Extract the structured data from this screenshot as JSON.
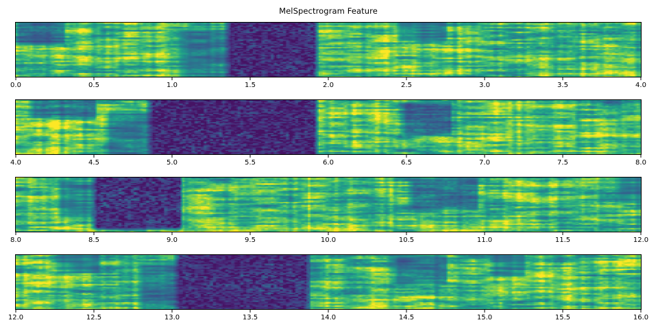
{
  "chart_data": {
    "type": "heatmap",
    "title": "MelSpectrogram Feature",
    "xlabel": "",
    "ylabel": "",
    "legend": "none",
    "grid": false,
    "colormap": "viridis",
    "colormap_stops": [
      "#440154",
      "#482878",
      "#3e4a89",
      "#31688e",
      "#26828e",
      "#1f9e89",
      "#35b779",
      "#6dcd59",
      "#b4de2c",
      "#fde725"
    ],
    "panels": [
      {
        "x_range": [
          0.0,
          4.0
        ],
        "tick_labels": [
          "0.0",
          "0.5",
          "1.0",
          "1.5",
          "2.0",
          "2.5",
          "3.0",
          "3.5",
          "4.0"
        ],
        "seed": 11,
        "segment_boundary": 1.92,
        "dark_regions": [
          {
            "start": 1.38,
            "end": 1.92,
            "strength": 0.88
          },
          {
            "start": 1.08,
            "end": 1.38,
            "strength": 0.42,
            "f0": 0.15,
            "f1": 1
          },
          {
            "start": 0.02,
            "end": 0.3,
            "strength": 0.5,
            "f0": 0.02,
            "f1": 0.35
          },
          {
            "start": 2.48,
            "end": 2.75,
            "strength": 0.4,
            "f0": 0.0,
            "f1": 0.3
          }
        ]
      },
      {
        "x_range": [
          4.0,
          8.0
        ],
        "tick_labels": [
          "4.0",
          "4.5",
          "5.0",
          "5.5",
          "6.0",
          "6.5",
          "7.0",
          "7.5",
          "8.0"
        ],
        "seed": 22,
        "segment_boundary": 5.92,
        "dark_regions": [
          {
            "start": 4.88,
            "end": 5.92,
            "strength": 0.9
          },
          {
            "start": 4.6,
            "end": 4.88,
            "strength": 0.45,
            "f0": 0.25,
            "f1": 1
          },
          {
            "start": 4.12,
            "end": 4.5,
            "strength": 0.5,
            "f0": 0.0,
            "f1": 0.3
          },
          {
            "start": 6.5,
            "end": 6.78,
            "strength": 0.55,
            "f0": 0.08,
            "f1": 0.6
          }
        ]
      },
      {
        "x_range": [
          8.0,
          12.0
        ],
        "tick_labels": [
          "8.0",
          "8.5",
          "9.0",
          "9.5",
          "10.0",
          "10.5",
          "11.0",
          "11.5",
          "12.0"
        ],
        "seed": 33,
        "segment_boundary": 9.88,
        "dark_regions": [
          {
            "start": 8.52,
            "end": 9.05,
            "strength": 0.85,
            "f0": 0.0,
            "f1": 0.92
          },
          {
            "start": 8.3,
            "end": 8.52,
            "strength": 0.4,
            "f0": 0.1,
            "f1": 0.7
          },
          {
            "start": 10.55,
            "end": 10.95,
            "strength": 0.5,
            "f0": 0.05,
            "f1": 0.55
          },
          {
            "start": 11.88,
            "end": 12.0,
            "strength": 0.35,
            "f0": 0.0,
            "f1": 0.4
          }
        ]
      },
      {
        "x_range": [
          12.0,
          16.0
        ],
        "tick_labels": [
          "12.0",
          "12.5",
          "13.0",
          "13.5",
          "14.0",
          "14.5",
          "15.0",
          "15.5",
          "16.0"
        ],
        "seed": 44,
        "segment_boundary": 13.87,
        "dark_regions": [
          {
            "start": 13.05,
            "end": 13.87,
            "strength": 0.86
          },
          {
            "start": 12.82,
            "end": 13.05,
            "strength": 0.45,
            "f0": 0.2,
            "f1": 1
          },
          {
            "start": 12.3,
            "end": 12.52,
            "strength": 0.35,
            "f0": 0.0,
            "f1": 0.3
          },
          {
            "start": 14.45,
            "end": 14.75,
            "strength": 0.45,
            "f0": 0.05,
            "f1": 0.5
          },
          {
            "start": 15.08,
            "end": 15.25,
            "strength": 0.35,
            "f0": 0.0,
            "f1": 0.35
          }
        ]
      }
    ]
  }
}
